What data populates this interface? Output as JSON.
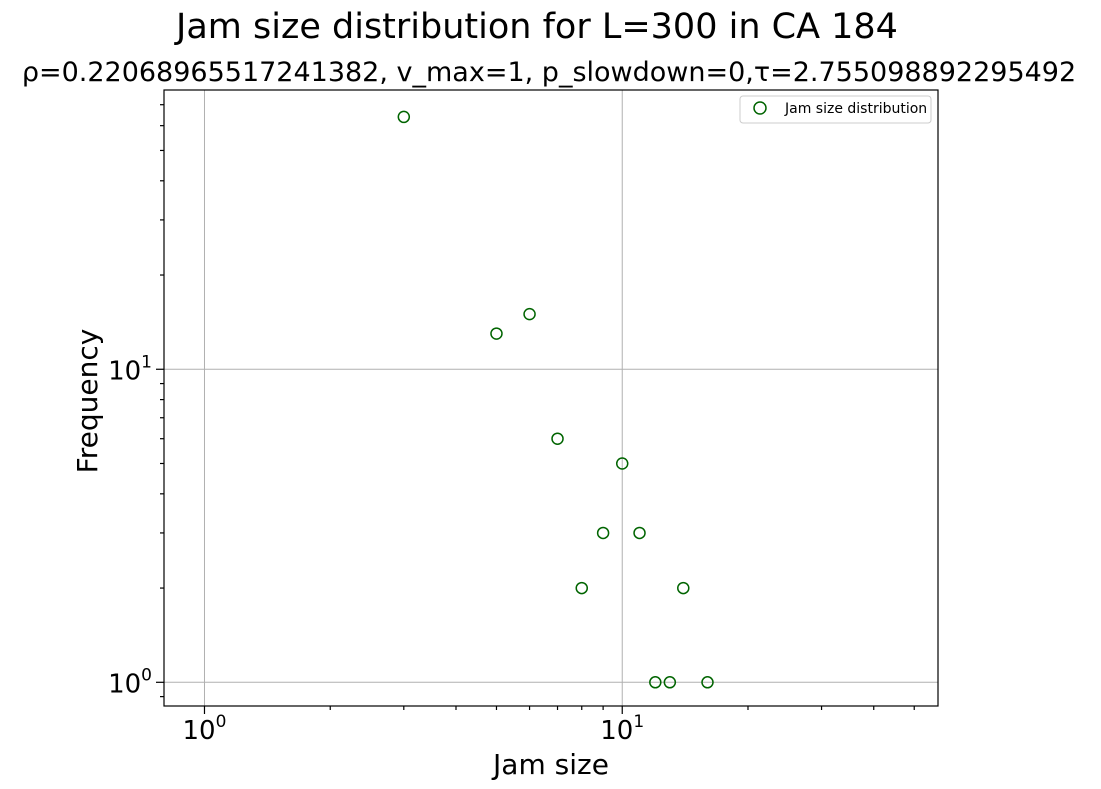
{
  "chart_data": {
    "type": "scatter",
    "title": "Jam size distribution for L=300 in CA 184",
    "subtitle": "ρ=0.22068965517241382, v_max=1, p_slowdown=0,τ=2.755098892295492",
    "xlabel": "Jam size",
    "ylabel": "Frequency",
    "xscale": "log",
    "yscale": "log",
    "xlim": [
      0.8,
      57
    ],
    "ylim": [
      0.84,
      78
    ],
    "x_ticks": [
      {
        "value": 1,
        "base": "10",
        "exp": "0"
      },
      {
        "value": 10,
        "base": "10",
        "exp": "1"
      }
    ],
    "y_ticks": [
      {
        "value": 1,
        "base": "10",
        "exp": "0"
      },
      {
        "value": 10,
        "base": "10",
        "exp": "1"
      }
    ],
    "grid": true,
    "legend_position": "upper right",
    "series": [
      {
        "name": "Jam size distribution",
        "marker": "open-circle",
        "color": "#006400",
        "points": [
          {
            "x": 3,
            "y": 64
          },
          {
            "x": 5,
            "y": 13
          },
          {
            "x": 6,
            "y": 15
          },
          {
            "x": 7,
            "y": 6
          },
          {
            "x": 8,
            "y": 2
          },
          {
            "x": 9,
            "y": 3
          },
          {
            "x": 10,
            "y": 5
          },
          {
            "x": 11,
            "y": 3
          },
          {
            "x": 12,
            "y": 1
          },
          {
            "x": 13,
            "y": 1
          },
          {
            "x": 14,
            "y": 2
          },
          {
            "x": 16,
            "y": 1
          }
        ]
      }
    ]
  }
}
